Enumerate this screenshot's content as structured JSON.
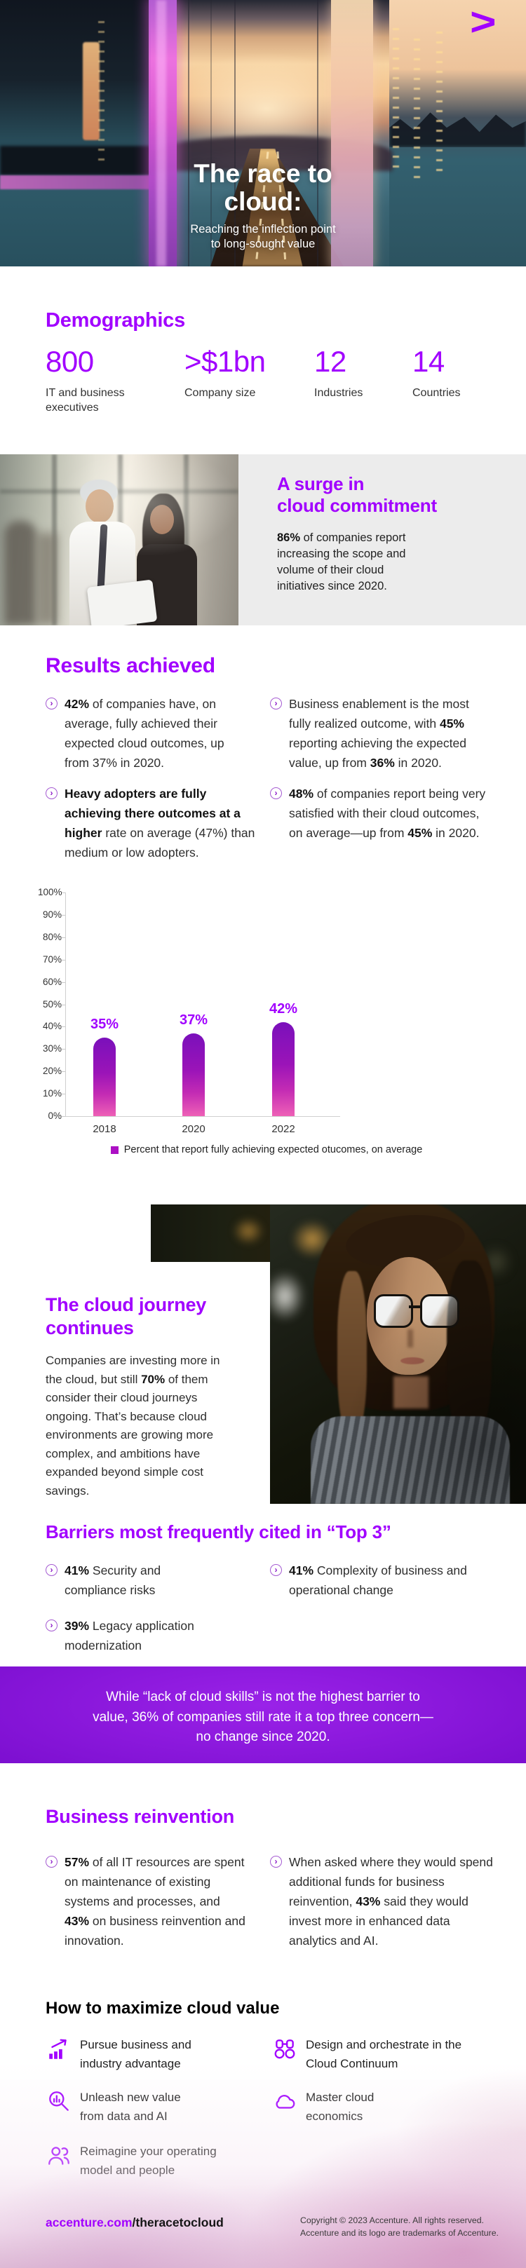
{
  "brand": {
    "logo_glyph": ">",
    "accent_color": "#a100ff"
  },
  "hero": {
    "title_line1": "The race to",
    "title_line2": "cloud:",
    "subtitle_line1": "Reaching the inflection point",
    "subtitle_line2": "to long-sought value"
  },
  "demographics": {
    "heading": "Demographics",
    "stats": [
      {
        "value": "800",
        "label": "IT and business executives"
      },
      {
        "value": ">$1bn",
        "label": "Company size"
      },
      {
        "value": "12",
        "label": "Industries"
      },
      {
        "value": "14",
        "label": "Countries"
      }
    ]
  },
  "surge": {
    "heading_line1": "A surge in",
    "heading_line2": "cloud commitment",
    "body": [
      {
        "t": "86%",
        "b": true
      },
      {
        "t": " of companies report increasing the scope and volume of their cloud initiatives since 2020.",
        "b": false
      }
    ]
  },
  "results": {
    "heading": "Results achieved",
    "bullets": {
      "l1": [
        {
          "t": "42%",
          "b": true
        },
        {
          "t": " of companies have, on average, fully achieved their expected cloud outcomes, up from 37% in 2020.",
          "b": false
        }
      ],
      "r1": [
        {
          "t": "Business enablement is the most fully realized outcome, with ",
          "b": false
        },
        {
          "t": "45%",
          "b": true
        },
        {
          "t": " reporting achieving the expected value, up from ",
          "b": false
        },
        {
          "t": "36%",
          "b": true
        },
        {
          "t": " in 2020.",
          "b": false
        }
      ],
      "l2": [
        {
          "t": "Heavy adopters are fully achieving there outcomes at a higher",
          "b": true
        },
        {
          "t": " rate on average (47%) than medium or low adopters.",
          "b": false
        }
      ],
      "r2": [
        {
          "t": "48%",
          "b": true
        },
        {
          "t": " of companies report being very satisfied with their cloud outcomes, on average—up from ",
          "b": false
        },
        {
          "t": "45%",
          "b": true
        },
        {
          "t": " in 2020.",
          "b": false
        }
      ]
    }
  },
  "chart_data": {
    "type": "bar",
    "categories": [
      "2018",
      "2020",
      "2022"
    ],
    "values": [
      35,
      37,
      42
    ],
    "value_labels": [
      "35%",
      "37%",
      "42%"
    ],
    "title": "",
    "xlabel": "",
    "ylabel": "",
    "ylim": [
      0,
      100
    ],
    "ytick_step": 10,
    "grid": false,
    "legend_position": "bottom",
    "legend": "Percent that report fully achieving expected otucomes, on average",
    "bar_gradient": [
      "#7a10bb",
      "#ee60b6"
    ],
    "label_color": "#a100ff"
  },
  "journey": {
    "heading_line1": "The cloud journey",
    "heading_line2": "continues",
    "body": [
      {
        "t": "Companies are investing more in the cloud, but still ",
        "b": false
      },
      {
        "t": "70%",
        "b": true
      },
      {
        "t": " of them consider their cloud journeys ongoing. That’s because cloud environments are growing more complex, and ambitions have expanded beyond simple cost savings.",
        "b": false
      }
    ]
  },
  "barriers": {
    "heading": "Barriers most frequently cited in “Top 3”",
    "bullets": {
      "l1": [
        {
          "t": "41%",
          "b": true
        },
        {
          "t": " Security and compliance risks",
          "b": false
        }
      ],
      "r1": [
        {
          "t": "41%",
          "b": true
        },
        {
          "t": " Complexity of business and operational change",
          "b": false
        }
      ],
      "l2": [
        {
          "t": "39%",
          "b": true
        },
        {
          "t": " Legacy application modernization",
          "b": false
        }
      ]
    }
  },
  "banner": {
    "text": "While “lack of cloud skills” is not the highest barrier to value, 36% of companies still rate it a top three concern—no change since 2020."
  },
  "reinvention": {
    "heading": "Business reinvention",
    "bullets": {
      "l1": [
        {
          "t": "57%",
          "b": true
        },
        {
          "t": " of all IT resources are spent on maintenance of existing systems and processes, and ",
          "b": false
        },
        {
          "t": "43%",
          "b": true
        },
        {
          "t": " on business reinvention and innovation.",
          "b": false
        }
      ],
      "r1": [
        {
          "t": "When asked where they would spend additional funds for business reinvention, ",
          "b": false
        },
        {
          "t": "43%",
          "b": true
        },
        {
          "t": " said they would invest more in enhanced data analytics and AI.",
          "b": false
        }
      ]
    }
  },
  "maximize": {
    "heading": "How to maximize cloud value",
    "items": [
      {
        "icon": "growth-chart-icon",
        "label": "Pursue business and industry advantage"
      },
      {
        "icon": "binoculars-icon",
        "label": "Design and orchestrate in the Cloud Continuum"
      },
      {
        "icon": "magnifier-data-icon",
        "label": "Unleash new value from data and AI"
      },
      {
        "icon": "cloud-icon",
        "label": "Master cloud economics"
      },
      {
        "icon": "people-icon",
        "label": "Reimagine your operating model and people"
      }
    ]
  },
  "footer": {
    "link_purple": "accenture.com",
    "link_black": "/theracetocloud",
    "copyright_line1": "Copyright © 2023 Accenture. All rights reserved.",
    "copyright_line2": "Accenture and its logo are trademarks of Accenture."
  }
}
